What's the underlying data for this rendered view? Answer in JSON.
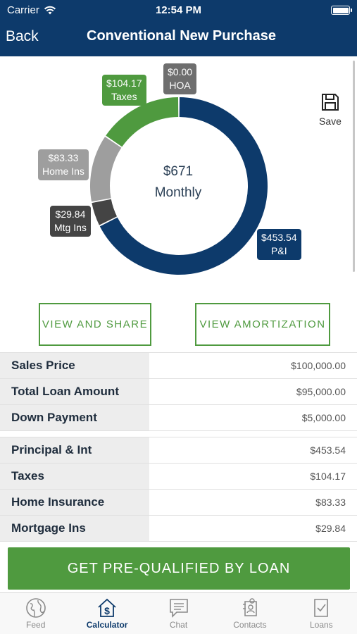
{
  "status_bar": {
    "carrier": "Carrier",
    "time": "12:54 PM"
  },
  "nav": {
    "back_label": "Back",
    "title": "Conventional New Purchase"
  },
  "colors": {
    "navy": "#0d3a6b",
    "green": "#4f9a3f",
    "gray": "#9e9e9e",
    "dark_gray": "#444444"
  },
  "chart_data": {
    "type": "pie",
    "center_value": "$671",
    "center_label": "Monthly",
    "slices": [
      {
        "label": "P&I",
        "value": 453.54,
        "display": "$453.54",
        "color": "#0d3a6b"
      },
      {
        "label": "Mtg Ins",
        "value": 29.84,
        "display": "$29.84",
        "color": "#444444"
      },
      {
        "label": "Home Ins",
        "value": 83.33,
        "display": "$83.33",
        "color": "#9e9e9e"
      },
      {
        "label": "Taxes",
        "value": 104.17,
        "display": "$104.17",
        "color": "#4f9a3f"
      },
      {
        "label": "HOA",
        "value": 0.0,
        "display": "$0.00",
        "color": "#6e6e6e"
      }
    ]
  },
  "save_label": "Save",
  "buttons": {
    "view_share": "VIEW AND SHARE",
    "view_amortization": "VIEW AMORTIZATION"
  },
  "loan_summary": [
    {
      "label": "Sales Price",
      "value": "$100,000.00"
    },
    {
      "label": "Total Loan Amount",
      "value": "$95,000.00"
    },
    {
      "label": "Down Payment",
      "value": "$5,000.00"
    }
  ],
  "payment_breakdown": [
    {
      "label": "Principal & Int",
      "value": "$453.54"
    },
    {
      "label": "Taxes",
      "value": "$104.17"
    },
    {
      "label": "Home Insurance",
      "value": "$83.33"
    },
    {
      "label": "Mortgage Ins",
      "value": "$29.84"
    }
  ],
  "cta_label": "GET PRE-QUALIFIED BY LOAN",
  "tabs": [
    {
      "label": "Feed",
      "icon": "globe-icon"
    },
    {
      "label": "Calculator",
      "icon": "house-dollar-icon",
      "active": true
    },
    {
      "label": "Chat",
      "icon": "chat-bubble-icon"
    },
    {
      "label": "Contacts",
      "icon": "contacts-icon"
    },
    {
      "label": "Loans",
      "icon": "document-check-icon"
    }
  ]
}
